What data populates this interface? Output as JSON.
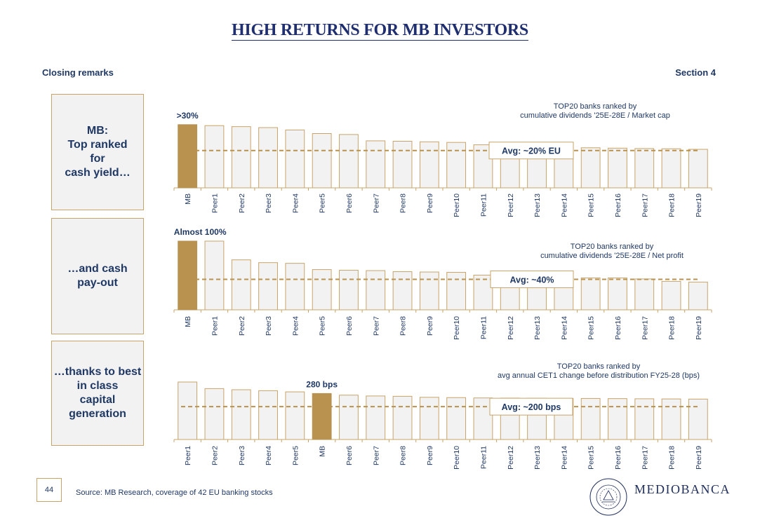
{
  "page": {
    "title": "HIGH RETURNS FOR MB INVESTORS",
    "left_header": "Closing remarks",
    "right_header": "Section 4",
    "page_number": "44",
    "source": "Source: MB Research, coverage of 42 EU banking stocks",
    "logo": "MEDIOBANCA",
    "colors": {
      "navy": "#1f3864",
      "gold": "#b8924e",
      "bar_fill": "#f2f2f2",
      "bar_border": "#c8a46a",
      "avg_line": "#b8924e"
    }
  },
  "side_boxes": [
    {
      "text": "MB:\nTop ranked\nfor\ncash yield…"
    },
    {
      "text": "…and cash\npay-out"
    },
    {
      "text": "…thanks to best\nin class\ncapital\ngeneration"
    }
  ],
  "chart_data": [
    {
      "type": "bar",
      "title": "TOP20 banks ranked by\ncumulative dividends '25E-28E / Market cap",
      "categories": [
        "MB",
        "Peer1",
        "Peer2",
        "Peer3",
        "Peer4",
        "Peer5",
        "Peer6",
        "Peer7",
        "Peer8",
        "Peer9",
        "Peer10",
        "Peer11",
        "Peer12",
        "Peer13",
        "Peer14",
        "Peer15",
        "Peer16",
        "Peer17",
        "Peer18",
        "Peer19"
      ],
      "values": [
        32,
        31.5,
        31,
        30.5,
        29.3,
        27.5,
        27,
        23.8,
        23.6,
        23.3,
        23,
        21.8,
        21.5,
        21.4,
        21.2,
        20.3,
        20.1,
        19.9,
        19.8,
        19.5
      ],
      "highlight": "MB",
      "highlight_label": ">30%",
      "average": 18.9,
      "average_label": "Avg: ~20% EU",
      "ylim": [
        0,
        33
      ]
    },
    {
      "type": "bar",
      "title": "TOP20 banks ranked by\ncumulative dividends '25E-28E / Net profit",
      "categories": [
        "MB",
        "Peer1",
        "Peer2",
        "Peer3",
        "Peer4",
        "Peer5",
        "Peer6",
        "Peer7",
        "Peer8",
        "Peer9",
        "Peer10",
        "Peer11",
        "Peer12",
        "Peer13",
        "Peer14",
        "Peer15",
        "Peer16",
        "Peer17",
        "Peer18",
        "Peer19"
      ],
      "values": [
        99,
        99,
        72,
        68,
        67,
        58,
        57,
        56.5,
        55,
        54.5,
        54,
        50,
        49,
        48,
        47,
        46,
        46,
        44.5,
        41,
        40
      ],
      "highlight": "MB",
      "highlight_label": "Almost 100%",
      "average": 44,
      "average_label": "Avg: ~40%",
      "ylim": [
        0,
        100
      ]
    },
    {
      "type": "bar",
      "title": "TOP20 banks ranked by\navg annual CET1 change before distribution FY25-28 (bps)",
      "categories": [
        "Peer1",
        "Peer2",
        "Peer3",
        "Peer4",
        "Peer5",
        "MB",
        "Peer6",
        "Peer7",
        "Peer8",
        "Peer9",
        "Peer10",
        "Peer11",
        "Peer12",
        "Peer13",
        "Peer14",
        "Peer15",
        "Peer16",
        "Peer17",
        "Peer18",
        "Peer19"
      ],
      "values": [
        350,
        310,
        303,
        297,
        290,
        280,
        270,
        265,
        263,
        257,
        255,
        253,
        252,
        251,
        250,
        250,
        249,
        248,
        247,
        246
      ],
      "highlight": "MB",
      "highlight_label": "280 bps",
      "average": 200,
      "average_label": "Avg: ~200 bps",
      "ylim": [
        0,
        350
      ]
    }
  ]
}
